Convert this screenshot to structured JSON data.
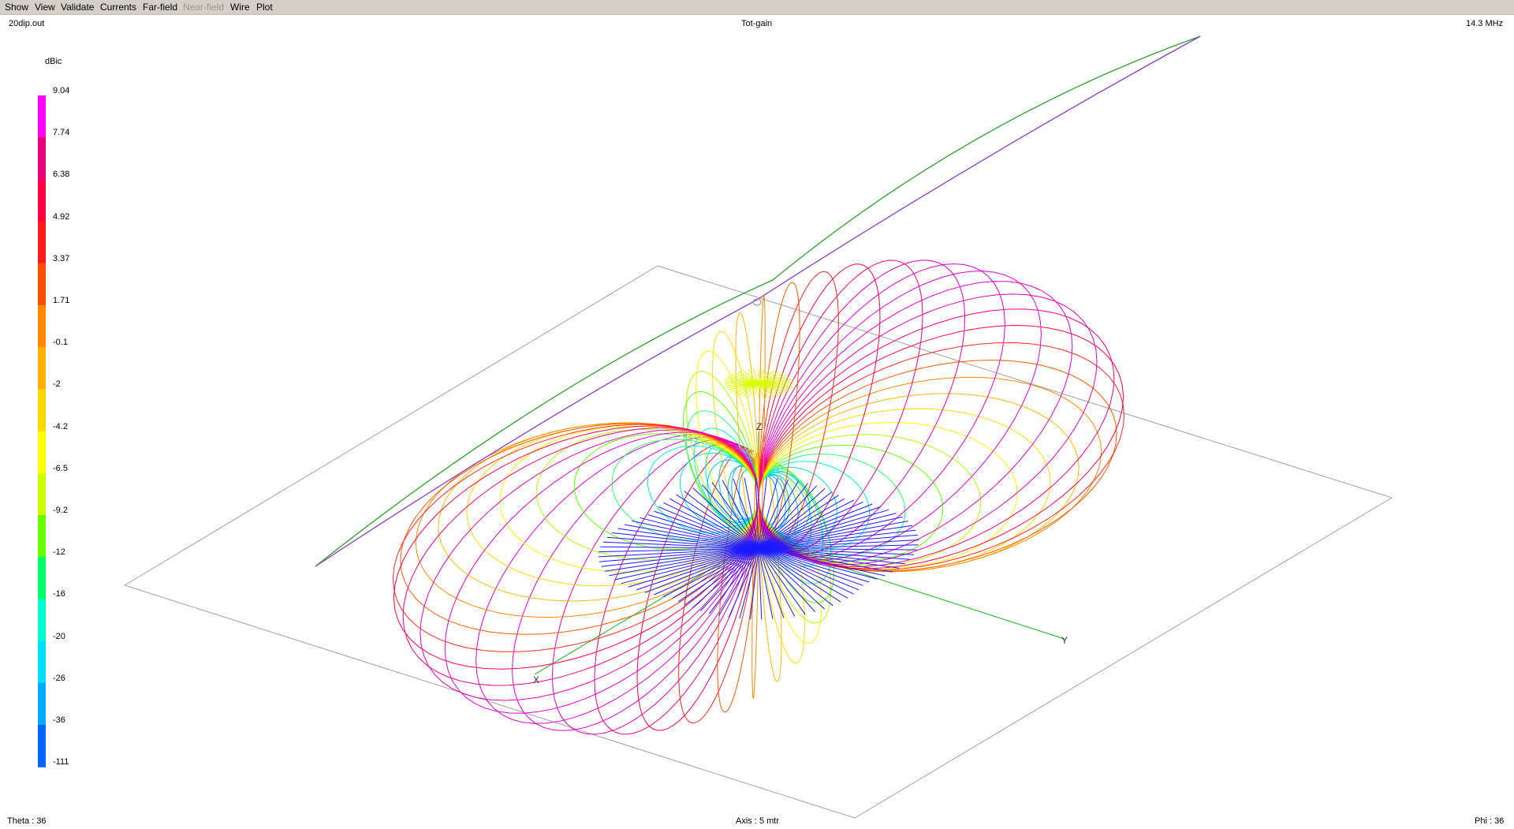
{
  "menu": [
    "Show",
    "View",
    "Validate",
    "Currents",
    "Far-field",
    "Near-field",
    "Wire",
    "Plot"
  ],
  "menu_disabled": [
    "Near-field"
  ],
  "header": {
    "filename": "20dip.out",
    "plot_title": "Tot-gain",
    "frequency": "14.3 MHz"
  },
  "legend": {
    "unit": "dBic",
    "values": [
      "9.04",
      "7.74",
      "6.38",
      "4.92",
      "3.37",
      "1.71",
      "-0.1",
      "-2",
      "-4.2",
      "-6.5",
      "-9.2",
      "-12",
      "-16",
      "-20",
      "-26",
      "-36",
      "-111"
    ],
    "colors": [
      "#ff00ff",
      "#e8007a",
      "#ff0044",
      "#ff1a1a",
      "#ff4d00",
      "#ff8800",
      "#ffb000",
      "#ffd800",
      "#ffff00",
      "#ccff00",
      "#66ff00",
      "#00ff66",
      "#00ffcc",
      "#00ddff",
      "#00aaff",
      "#0066ff",
      "#0000ff"
    ]
  },
  "axes": {
    "x": "X",
    "y": "Y",
    "z": "Z"
  },
  "footer": {
    "theta": "Theta : 36",
    "axis": "Axis : 5 mtr",
    "phi": "Phi : 36"
  },
  "colors": {
    "ground_plane": "#a0a0a0",
    "wire_green": "#2ea22e",
    "wire_purple": "#8a3cc8",
    "axis": "#3cbf3c",
    "menubar": "#d4d0c8"
  }
}
